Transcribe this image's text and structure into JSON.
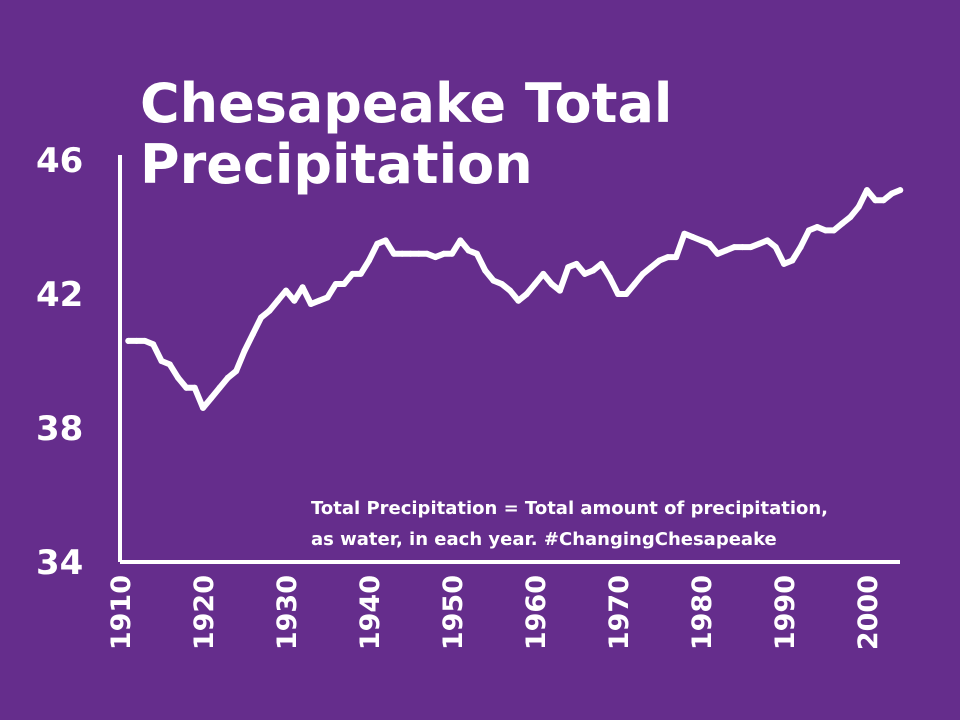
{
  "colors": {
    "background": "#652d8c",
    "foreground": "#ffffff"
  },
  "chart_data": {
    "type": "line",
    "title_lines": [
      "Chesapeake Total",
      "Precipitation"
    ],
    "xlabel": "",
    "ylabel": "",
    "xlim": [
      1910,
      2005
    ],
    "ylim": [
      34,
      46
    ],
    "yticks": [
      "46",
      "42",
      "38",
      "34"
    ],
    "xticks": [
      "1910",
      "1920",
      "1930",
      "1940",
      "1950",
      "1960",
      "1970",
      "1980",
      "1990",
      "2000"
    ],
    "grid": false,
    "legend": "none",
    "annotation_lines": [
      "Total Precipitation = Total amount of precipitation,",
      "as water, in each year. #ChangingChesapeake"
    ],
    "series": [
      {
        "x": [
          1911,
          1912,
          1913,
          1914,
          1915,
          1916,
          1917,
          1918,
          1919,
          1920,
          1921,
          1922,
          1923,
          1924,
          1925,
          1926,
          1927,
          1928,
          1929,
          1930,
          1931,
          1932,
          1933,
          1934,
          1935,
          1936,
          1937,
          1938,
          1939,
          1940,
          1941,
          1942,
          1943,
          1944,
          1945,
          1946,
          1947,
          1948,
          1949,
          1950,
          1951,
          1952,
          1953,
          1954,
          1955,
          1956,
          1957,
          1958,
          1959,
          1960,
          1961,
          1962,
          1963,
          1964,
          1965,
          1966,
          1967,
          1968,
          1969,
          1970,
          1971,
          1972,
          1973,
          1974,
          1975,
          1976,
          1977,
          1978,
          1979,
          1980,
          1981,
          1982,
          1983,
          1984,
          1985,
          1986,
          1987,
          1988,
          1989,
          1990,
          1991,
          1992,
          1993,
          1994,
          1995,
          1996,
          1997,
          1998,
          1999,
          2000,
          2001,
          2002,
          2003,
          2004
        ],
        "values": [
          40.6,
          40.6,
          40.6,
          40.5,
          40.0,
          39.9,
          39.5,
          39.2,
          39.2,
          38.6,
          38.9,
          39.2,
          39.5,
          39.7,
          40.3,
          40.8,
          41.3,
          41.5,
          41.8,
          42.1,
          41.8,
          42.2,
          41.7,
          41.8,
          41.9,
          42.3,
          42.3,
          42.6,
          42.6,
          43.0,
          43.5,
          43.6,
          43.2,
          43.2,
          43.2,
          43.2,
          43.2,
          43.1,
          43.2,
          43.2,
          43.6,
          43.3,
          43.2,
          42.7,
          42.4,
          42.3,
          42.1,
          41.8,
          42.0,
          42.3,
          42.6,
          42.3,
          42.1,
          42.8,
          42.9,
          42.6,
          42.7,
          42.9,
          42.5,
          42.0,
          42.0,
          42.3,
          42.6,
          42.8,
          43.0,
          43.1,
          43.1,
          43.8,
          43.7,
          43.6,
          43.5,
          43.2,
          43.3,
          43.4,
          43.4,
          43.4,
          43.5,
          43.6,
          43.4,
          42.9,
          43.0,
          43.4,
          43.9,
          44.0,
          43.9,
          43.9,
          44.1,
          44.3,
          44.6,
          45.1,
          44.8,
          44.8,
          45.0,
          45.1
        ]
      }
    ]
  }
}
